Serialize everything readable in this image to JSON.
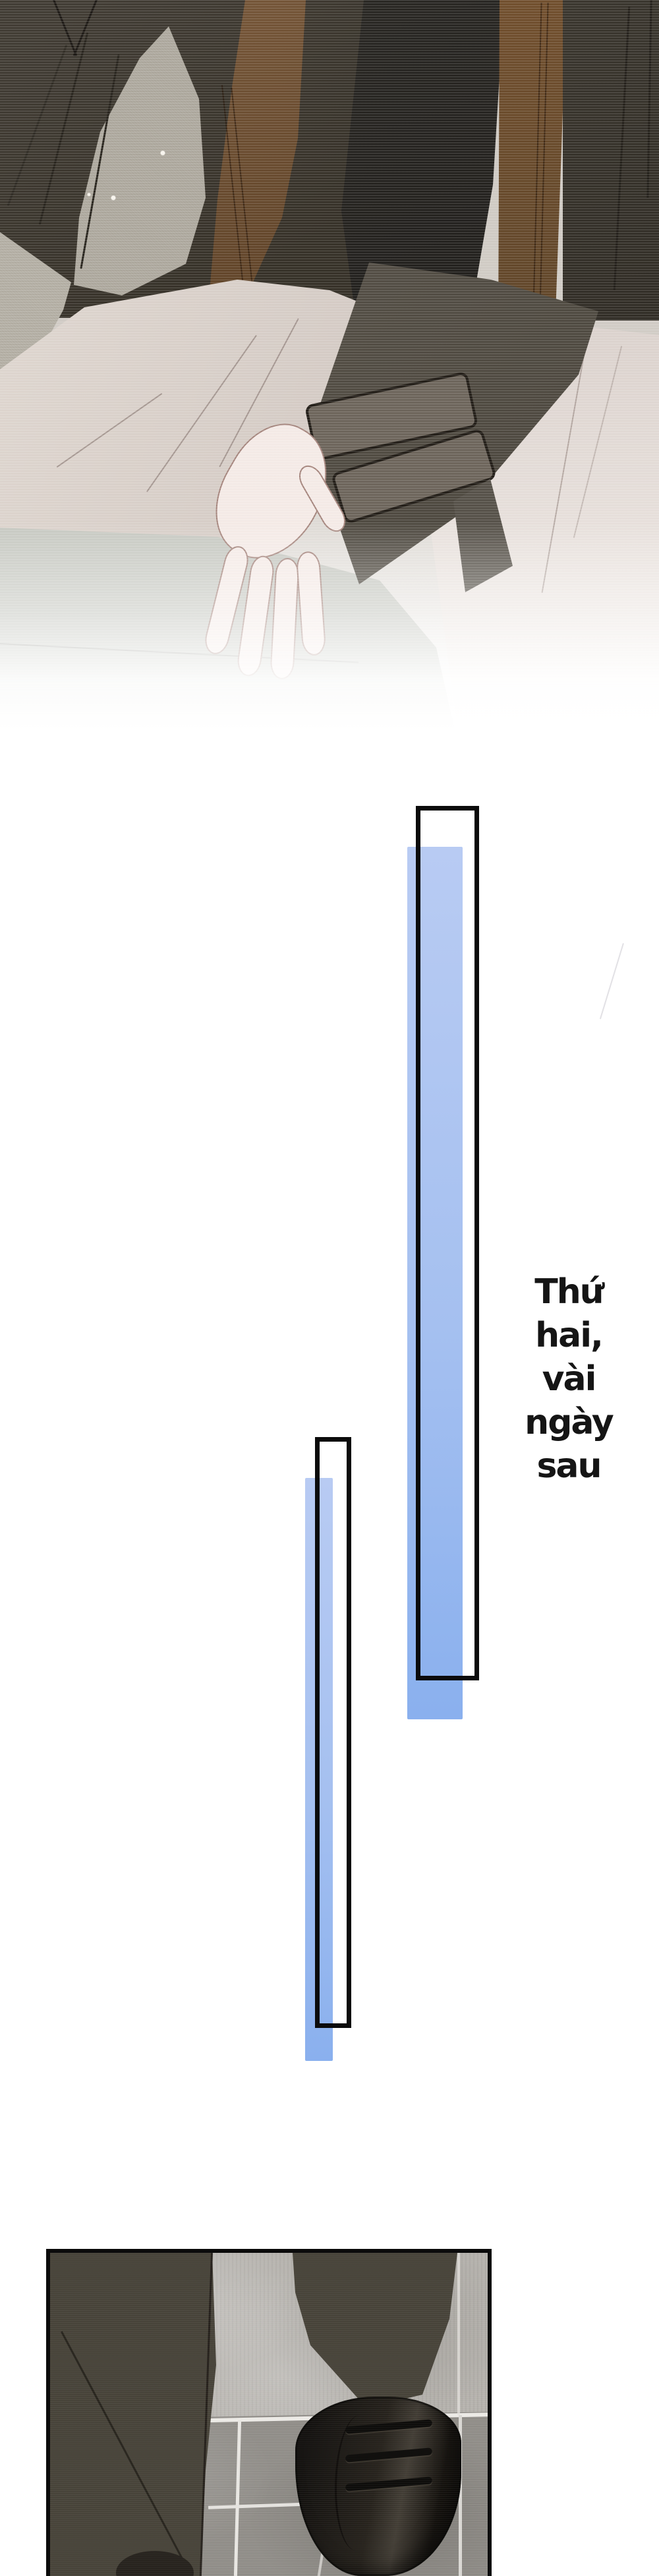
{
  "page": {
    "type": "comic-page",
    "background": "#ffffff"
  },
  "narration": {
    "full_text": "Thứ hai, vài ngày sau",
    "lines": [
      "Thứ",
      "hai,",
      "vài",
      "ngày",
      "sau"
    ],
    "color": "#151515"
  },
  "caption_bars": {
    "count": 2,
    "fill_top": "#b8cbf3",
    "fill_bottom": "#8ab0ee",
    "outline": "#0b0b0b"
  },
  "panels": {
    "top_illustration": {
      "alt": "seated figure: dark jacket with leather straps, black shirt, pale trousers, bare hand resting over knee, scene fades to white",
      "palette": {
        "jacket": "#3e3a32",
        "shirt": "#2a2824",
        "strap_leather": "#6f5033",
        "trousers": "#ddd5ce",
        "skin": "#f5ebe7",
        "backdrop": "#aca79c"
      }
    },
    "bottom_panel": {
      "alt": "standing legs in dark pinstripe trousers, black laced dress shoe on gray tiled floor",
      "palette": {
        "border": "#0b0b0b",
        "wall_tile": "#b6b3ae",
        "floor_tile": "#8f8c87",
        "grout": "#eceae6",
        "trousers": "#474339",
        "shoe": "#1a1815"
      }
    }
  }
}
